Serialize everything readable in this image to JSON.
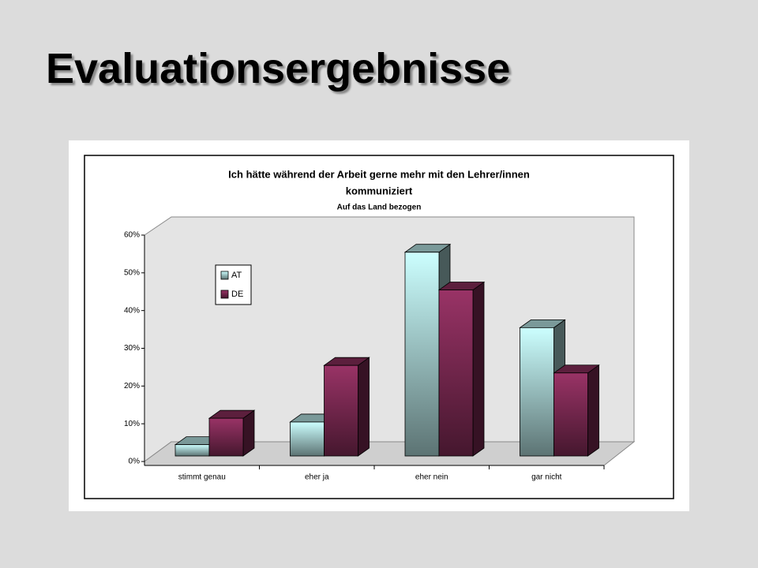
{
  "slide_title": "Evaluationsergebnisse",
  "chart_data": {
    "type": "bar3d",
    "title": "Ich hätte während der Arbeit gerne mehr mit den Lehrer/innen",
    "title_line2": "kommuniziert",
    "subtitle": "Auf das Land bezogen",
    "categories": [
      "stimmt genau",
      "eher ja",
      "eher nein",
      "gar nicht"
    ],
    "series": [
      {
        "name": "AT",
        "color": "#ccffff",
        "values": [
          3,
          9,
          54,
          34
        ]
      },
      {
        "name": "DE",
        "color": "#993366",
        "values": [
          10,
          24,
          44,
          22
        ]
      }
    ],
    "ylim": [
      0,
      60
    ],
    "yticks": [
      {
        "value": 0,
        "label": "0%"
      },
      {
        "value": 10,
        "label": "10%"
      },
      {
        "value": 20,
        "label": "20%"
      },
      {
        "value": 30,
        "label": "30%"
      },
      {
        "value": 40,
        "label": "40%"
      },
      {
        "value": 50,
        "label": "50%"
      },
      {
        "value": 60,
        "label": "60%"
      }
    ],
    "legend": "top-left"
  }
}
